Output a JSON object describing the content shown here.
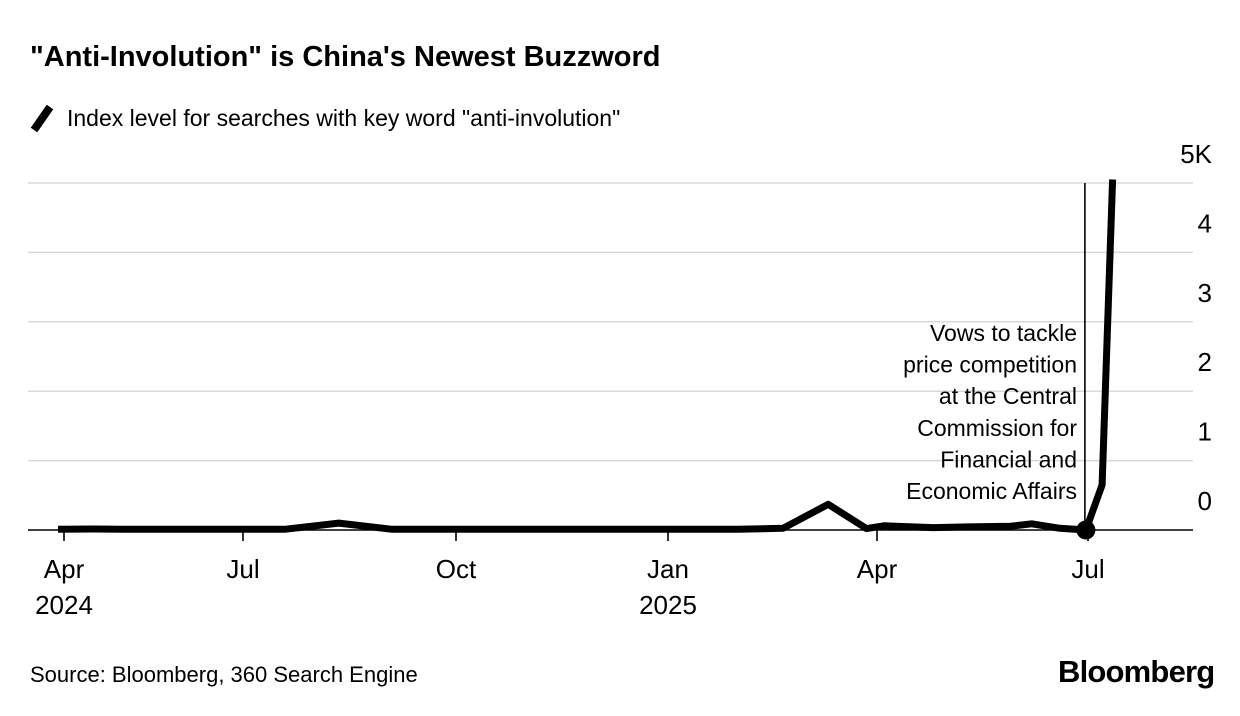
{
  "header": {
    "title": "\"Anti-Involution\" is China's Newest Buzzword",
    "legend_label": "Index level for searches with key word \"anti-involution\""
  },
  "footer": {
    "source": "Source: Bloomberg, 360 Search Engine",
    "logo": "Bloomberg"
  },
  "colors": {
    "line": "#000000",
    "grid": "#d9d9d9",
    "axis": "#000000",
    "text": "#000000",
    "background": "#ffffff"
  },
  "chart_data": {
    "type": "line",
    "title": "\"Anti-Involution\" is China's Newest Buzzword",
    "legend_position": "top-left",
    "grid": true,
    "series": [
      {
        "name": "Index level for searches with key word \"anti-involution\"",
        "x_unit": "months since Apr 2024",
        "points": [
          [
            -0.1,
            10
          ],
          [
            0.5,
            15
          ],
          [
            1,
            10
          ],
          [
            1.5,
            12
          ],
          [
            2,
            10
          ],
          [
            2.5,
            12
          ],
          [
            3,
            10
          ],
          [
            3.6,
            12
          ],
          [
            4.35,
            100
          ],
          [
            5.1,
            10
          ],
          [
            6,
            12
          ],
          [
            7,
            10
          ],
          [
            8,
            12
          ],
          [
            9,
            10
          ],
          [
            10,
            12
          ],
          [
            10.65,
            25
          ],
          [
            11.3,
            370
          ],
          [
            11.85,
            20
          ],
          [
            12.1,
            60
          ],
          [
            12.8,
            35
          ],
          [
            13.3,
            45
          ],
          [
            13.9,
            55
          ],
          [
            14.2,
            90
          ],
          [
            14.6,
            25
          ],
          [
            14.97,
            0
          ],
          [
            15.2,
            650
          ],
          [
            15.35,
            5050
          ]
        ]
      }
    ],
    "x_axis": {
      "ticks": [
        {
          "month": 0,
          "label": "Apr",
          "year": "2024"
        },
        {
          "month": 3,
          "label": "Jul"
        },
        {
          "month": 6,
          "label": "Oct"
        },
        {
          "month": 9,
          "label": "Jan",
          "year": "2025"
        },
        {
          "month": 12,
          "label": "Apr"
        },
        {
          "month": 15,
          "label": "Jul"
        }
      ]
    },
    "y_axis": {
      "side": "right",
      "range": [
        0,
        5000
      ],
      "ticks": [
        {
          "value": 5000,
          "label": "5K"
        },
        {
          "value": 4000,
          "label": "4"
        },
        {
          "value": 3000,
          "label": "3"
        },
        {
          "value": 2000,
          "label": "2"
        },
        {
          "value": 1000,
          "label": "1"
        },
        {
          "value": 0,
          "label": "0"
        }
      ]
    },
    "annotation": {
      "lines": [
        "Vows to tackle",
        "price competition",
        "at the Central",
        "Commission for",
        "Financial and",
        "Economic Affairs"
      ],
      "marker": {
        "month": 14.97,
        "value": 0
      }
    }
  }
}
